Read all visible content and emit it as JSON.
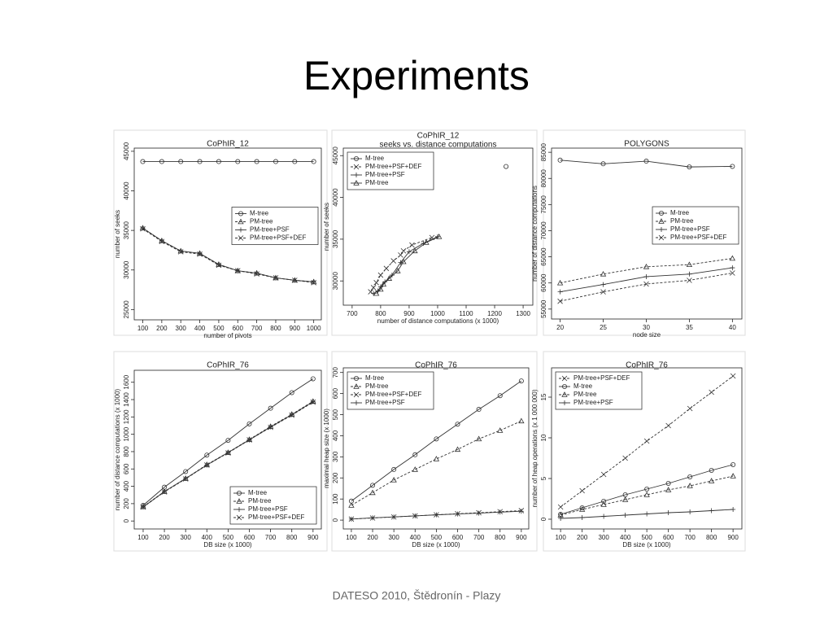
{
  "title": "Experiments",
  "footer": "DATESO 2010, Štědronín - Plazy",
  "chart_data": [
    {
      "type": "line",
      "title": "CoPhIR_12",
      "xlabel": "number of pivots",
      "ylabel": "number of seeks",
      "color": "#333333",
      "legend": "center right",
      "x": [
        100,
        200,
        300,
        400,
        500,
        600,
        700,
        800,
        900,
        1000
      ],
      "xlim": [
        55,
        1040
      ],
      "xticks": [
        100,
        200,
        300,
        400,
        500,
        600,
        700,
        800,
        900,
        1000
      ],
      "ylim": [
        23700,
        45400
      ],
      "yticks": [
        25000,
        30000,
        35000,
        40000,
        45000
      ],
      "series": [
        {
          "name": "M-tree",
          "marker": "circle",
          "dashed": false,
          "values": [
            43700,
            43700,
            43700,
            43700,
            43700,
            43700,
            43700,
            43700,
            43700,
            43700
          ]
        },
        {
          "name": "PM-tree",
          "marker": "triangle",
          "dashed": true,
          "values": [
            35300,
            33700,
            32400,
            32100,
            30700,
            29900,
            29600,
            29000,
            28700,
            28500
          ]
        },
        {
          "name": "PM-tree+PSF",
          "marker": "plus",
          "dashed": false,
          "values": [
            35300,
            33700,
            32400,
            32100,
            30700,
            29900,
            29600,
            29000,
            28700,
            28500
          ]
        },
        {
          "name": "PM-tree+PSF+DEF",
          "marker": "x",
          "dashed": true,
          "values": [
            35200,
            33600,
            32300,
            32000,
            30600,
            29900,
            29500,
            29000,
            28700,
            28400
          ]
        }
      ]
    },
    {
      "type": "line",
      "title": "CoPhIR_12",
      "subtitle": "seeks vs. distance computations",
      "xlabel": "number of distance computations (x 1000)",
      "ylabel": "number of seeks",
      "color": "#333333",
      "legend": "upper left",
      "xlim": [
        669,
        1334
      ],
      "xticks": [
        700,
        800,
        900,
        1000,
        1100,
        1200,
        1300
      ],
      "ylim": [
        27100,
        45900
      ],
      "yticks": [
        30000,
        35000,
        40000,
        45000
      ],
      "series": [
        {
          "name": "M-tree",
          "marker": "circle",
          "dashed": false,
          "x": [
            1240
          ],
          "values": [
            43700
          ]
        },
        {
          "name": "PM-tree+PSF+DEF",
          "marker": "x",
          "dashed": true,
          "x": [
            765,
            775,
            785,
            800,
            820,
            845,
            870,
            880,
            910,
            980
          ],
          "values": [
            28700,
            29200,
            29800,
            30700,
            31500,
            32400,
            33100,
            33600,
            34300,
            35200
          ]
        },
        {
          "name": "PM-tree+PSF",
          "marker": "plus",
          "dashed": false,
          "x": [
            775,
            790,
            800,
            815,
            840,
            870,
            900,
            950,
            1000
          ],
          "values": [
            28500,
            28800,
            29300,
            29900,
            30700,
            32200,
            33500,
            34500,
            35300
          ]
        },
        {
          "name": "PM-tree",
          "marker": "triangle",
          "dashed": false,
          "x": [
            785,
            800,
            810,
            830,
            860,
            880,
            920,
            960,
            1005
          ],
          "values": [
            28500,
            29000,
            29600,
            30300,
            31200,
            32300,
            33600,
            34600,
            35300
          ]
        }
      ]
    },
    {
      "type": "line",
      "title": "POLYGONS",
      "xlabel": "node size",
      "ylabel": "number of distance computations",
      "color": "#333333",
      "legend": "center right",
      "x": [
        20,
        25,
        30,
        35,
        40
      ],
      "xlim": [
        19,
        41.1
      ],
      "xticks": [
        20,
        25,
        30,
        35,
        40
      ],
      "ylim": [
        53100,
        85800
      ],
      "yticks": [
        55000,
        60000,
        65000,
        70000,
        75000,
        80000,
        85000
      ],
      "series": [
        {
          "name": "M-tree",
          "marker": "circle",
          "dashed": false,
          "values": [
            83500,
            82800,
            83300,
            82200,
            82300
          ]
        },
        {
          "name": "PM-tree",
          "marker": "triangle",
          "dashed": true,
          "values": [
            60000,
            61700,
            63100,
            63500,
            64700
          ]
        },
        {
          "name": "PM-tree+PSF",
          "marker": "plus",
          "dashed": false,
          "values": [
            58300,
            59700,
            61200,
            61700,
            62900
          ]
        },
        {
          "name": "PM-tree+PSF+DEF",
          "marker": "x",
          "dashed": true,
          "values": [
            56500,
            58300,
            59800,
            60500,
            61900
          ]
        }
      ]
    },
    {
      "type": "line",
      "title": "CoPhIR_76",
      "xlabel": "DB size (x 1000)",
      "ylabel": "number of distance computations (x 1000)",
      "color": "#333333",
      "legend": "lower right",
      "x": [
        100,
        200,
        300,
        400,
        500,
        600,
        700,
        800,
        900
      ],
      "xlim": [
        58,
        939
      ],
      "xticks": [
        100,
        200,
        300,
        400,
        500,
        600,
        700,
        800,
        900
      ],
      "ylim": [
        -92,
        1738
      ],
      "yticks": [
        0,
        200,
        400,
        600,
        800,
        1000,
        1200,
        1400,
        1600
      ],
      "series": [
        {
          "name": "M-tree",
          "marker": "circle",
          "dashed": false,
          "values": [
            180,
            390,
            570,
            760,
            930,
            1120,
            1300,
            1480,
            1640
          ]
        },
        {
          "name": "PM-tree",
          "marker": "triangle",
          "dashed": true,
          "values": [
            165,
            340,
            490,
            650,
            790,
            940,
            1090,
            1230,
            1380
          ]
        },
        {
          "name": "PM-tree+PSF",
          "marker": "plus",
          "dashed": false,
          "values": [
            160,
            340,
            490,
            645,
            790,
            935,
            1085,
            1225,
            1375
          ]
        },
        {
          "name": "PM-tree+PSF+DEF",
          "marker": "x",
          "dashed": true,
          "values": [
            160,
            335,
            485,
            645,
            785,
            935,
            1080,
            1220,
            1370
          ]
        }
      ]
    },
    {
      "type": "line",
      "title": "CoPhIR_76",
      "xlabel": "DB size (x 1000)",
      "ylabel": "maximal heap size (x 1000)",
      "color": "#333333",
      "legend": "upper left",
      "x": [
        100,
        200,
        300,
        400,
        500,
        600,
        700,
        800,
        900
      ],
      "xlim": [
        62,
        935
      ],
      "xticks": [
        100,
        200,
        300,
        400,
        500,
        600,
        700,
        800,
        900
      ],
      "ylim": [
        -42,
        722
      ],
      "yticks": [
        0,
        100,
        200,
        300,
        400,
        500,
        600,
        700
      ],
      "series": [
        {
          "name": "M-tree",
          "marker": "circle",
          "dashed": false,
          "values": [
            90,
            165,
            240,
            310,
            385,
            455,
            525,
            590,
            660
          ]
        },
        {
          "name": "PM-tree",
          "marker": "triangle",
          "dashed": true,
          "values": [
            70,
            130,
            190,
            240,
            290,
            335,
            385,
            425,
            470
          ]
        },
        {
          "name": "PM-tree+PSF+DEF",
          "marker": "x",
          "dashed": true,
          "values": [
            5,
            10,
            15,
            20,
            25,
            30,
            35,
            40,
            45
          ]
        },
        {
          "name": "PM-tree+PSF",
          "marker": "plus",
          "dashed": false,
          "values": [
            5,
            11,
            15,
            20,
            25,
            29,
            33,
            38,
            42
          ]
        }
      ]
    },
    {
      "type": "line",
      "title": "CoPhIR_76",
      "xlabel": "DB size (x 1000)",
      "ylabel": "number of heap operations (x 1 000 000)",
      "color": "#333333",
      "legend": "upper left",
      "x": [
        100,
        200,
        300,
        400,
        500,
        600,
        700,
        800,
        900
      ],
      "xlim": [
        58,
        941
      ],
      "xticks": [
        100,
        200,
        300,
        400,
        500,
        600,
        700,
        800,
        900
      ],
      "ylim": [
        -1.2,
        18.6
      ],
      "yticks": [
        0,
        5,
        10,
        15
      ],
      "series": [
        {
          "name": "PM-tree+PSF+DEF",
          "marker": "x",
          "dashed": true,
          "values": [
            1.5,
            3.5,
            5.5,
            7.5,
            9.6,
            11.5,
            13.6,
            15.6,
            17.6
          ]
        },
        {
          "name": "M-tree",
          "marker": "circle",
          "dashed": false,
          "values": [
            0.6,
            1.4,
            2.2,
            3.0,
            3.7,
            4.4,
            5.2,
            6.0,
            6.7
          ]
        },
        {
          "name": "PM-tree",
          "marker": "triangle",
          "dashed": true,
          "values": [
            0.5,
            1.2,
            1.8,
            2.4,
            3.0,
            3.6,
            4.1,
            4.7,
            5.3
          ]
        },
        {
          "name": "PM-tree+PSF",
          "marker": "plus",
          "dashed": false,
          "values": [
            0.1,
            0.2,
            0.35,
            0.5,
            0.65,
            0.8,
            0.9,
            1.05,
            1.2
          ]
        }
      ]
    }
  ]
}
